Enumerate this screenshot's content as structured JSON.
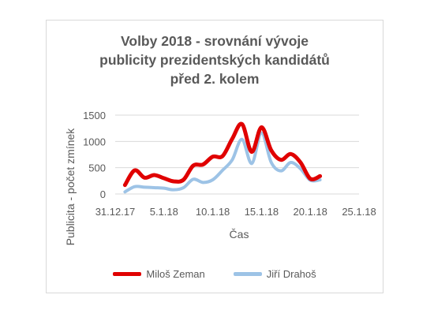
{
  "chart_data": {
    "type": "line",
    "title_lines": [
      "Volby 2018 - srovnání vývoje",
      "publicity prezidentských kandidátů",
      "před 2. kolem"
    ],
    "xlabel": "Čas",
    "ylabel": "Publicita - počet zmínek",
    "ylim": [
      0,
      1500
    ],
    "yticks": [
      0,
      500,
      1000,
      1500
    ],
    "xlim": [
      "2017-12-31",
      "2018-01-25"
    ],
    "xtick_labels": [
      "31.12.17",
      "5.1.18",
      "10.1.18",
      "15.1.18",
      "20.1.18",
      "25.1.18"
    ],
    "grid": "horizontal",
    "legend_position": "bottom",
    "x": [
      "2018-01-01",
      "2018-01-02",
      "2018-01-03",
      "2018-01-04",
      "2018-01-05",
      "2018-01-06",
      "2018-01-07",
      "2018-01-08",
      "2018-01-09",
      "2018-01-10",
      "2018-01-11",
      "2018-01-12",
      "2018-01-13",
      "2018-01-14",
      "2018-01-15",
      "2018-01-16",
      "2018-01-17",
      "2018-01-18",
      "2018-01-19",
      "2018-01-20",
      "2018-01-21"
    ],
    "series": [
      {
        "name": "Miloš Zeman",
        "color": "#e00000",
        "values": [
          170,
          450,
          310,
          360,
          300,
          240,
          270,
          540,
          560,
          710,
          720,
          1050,
          1330,
          800,
          1270,
          830,
          650,
          760,
          600,
          290,
          340
        ]
      },
      {
        "name": "Jiří Drahoš",
        "color": "#9dc3e6",
        "values": [
          40,
          140,
          130,
          120,
          110,
          80,
          120,
          280,
          220,
          270,
          450,
          650,
          1040,
          580,
          1160,
          600,
          440,
          600,
          480,
          260,
          270
        ]
      }
    ]
  }
}
